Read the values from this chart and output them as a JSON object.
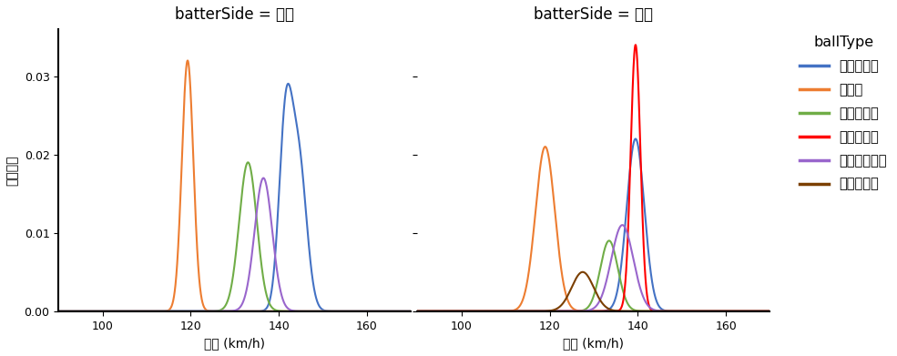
{
  "title_left": "batterSide = 左打",
  "title_right": "batterSide = 右打",
  "xlabel": "球速 (km/h)",
  "ylabel": "確率密度",
  "legend_title": "ballType",
  "xlim": [
    90,
    170
  ],
  "ylim": [
    0,
    0.036
  ],
  "yticks": [
    0.0,
    0.01,
    0.02,
    0.03
  ],
  "xticks": [
    100,
    120,
    140,
    160
  ],
  "ball_types": [
    "ストレート",
    "カーブ",
    "スプリット",
    "ツーシーム",
    "カットボール",
    "スライダー"
  ],
  "colors": [
    "#4472C4",
    "#ED7D31",
    "#70AD47",
    "#FF0000",
    "#9966CC",
    "#7B3F00"
  ],
  "left_params": [
    [
      {
        "mean": 141.5,
        "std": 1.5,
        "scale": 0.023
      },
      {
        "mean": 144.5,
        "std": 1.8,
        "scale": 0.019
      }
    ],
    [
      {
        "mean": 119.3,
        "std": 1.3,
        "scale": 0.032
      }
    ],
    [
      {
        "mean": 133.0,
        "std": 2.0,
        "scale": 0.019
      }
    ],
    null,
    [
      {
        "mean": 136.5,
        "std": 2.0,
        "scale": 0.017
      }
    ],
    null
  ],
  "right_params": [
    [
      {
        "mean": 139.5,
        "std": 2.0,
        "scale": 0.022
      }
    ],
    [
      {
        "mean": 119.0,
        "std": 2.2,
        "scale": 0.021
      }
    ],
    [
      {
        "mean": 133.5,
        "std": 2.0,
        "scale": 0.009
      }
    ],
    [
      {
        "mean": 139.5,
        "std": 1.1,
        "scale": 0.034
      }
    ],
    [
      {
        "mean": 136.5,
        "std": 2.5,
        "scale": 0.011
      }
    ],
    [
      {
        "mean": 127.5,
        "std": 2.5,
        "scale": 0.005
      }
    ]
  ],
  "background_color": "#FFFFFF",
  "figsize": [
    9.85,
    3.91
  ],
  "dpi": 100
}
